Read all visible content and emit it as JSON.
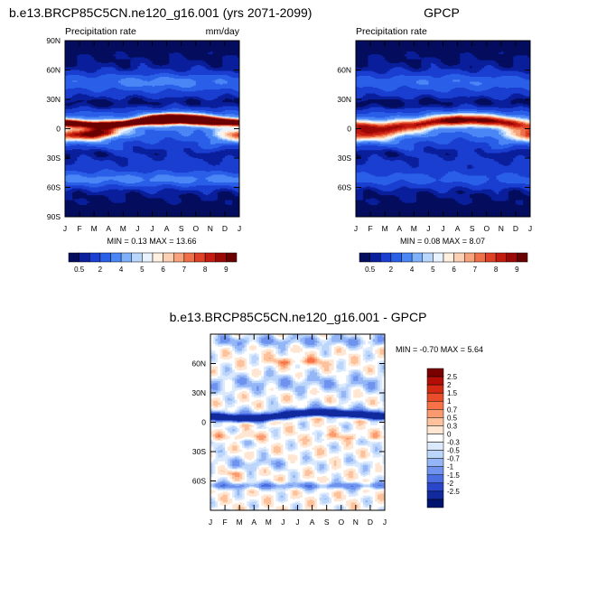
{
  "figure": {
    "panels": [
      {
        "id": "model",
        "title": "b.e13.BRCP85C5CN.ne120_g16.001 (yrs 2071-2099)",
        "left_label": "Precipitation rate",
        "right_label": "mm/day",
        "stats": "MIN =  0.13 MAX =  13.66",
        "y_ticks": [
          "90N",
          "60N",
          "30N",
          "0",
          "30S",
          "60S",
          "90S"
        ]
      },
      {
        "id": "obs",
        "title": "GPCP",
        "left_label": "Precipitation rate",
        "right_label": "",
        "stats": "MIN =  0.08 MAX =  8.07",
        "y_ticks": [
          "60N",
          "30N",
          "0",
          "30S",
          "60S"
        ]
      },
      {
        "id": "diff",
        "title": "b.e13.BRCP85C5CN.ne120_g16.001 - GPCP",
        "left_label": "",
        "right_label": "",
        "stats": "MIN = -0.70 MAX =  5.64",
        "y_ticks": [
          "60N",
          "30N",
          "0",
          "30S",
          "60S"
        ]
      }
    ],
    "months": [
      "J",
      "F",
      "M",
      "A",
      "M",
      "J",
      "J",
      "A",
      "S",
      "O",
      "N",
      "D",
      "J"
    ],
    "abs_colorbar": {
      "labels": [
        "0.5",
        "2",
        "4",
        "5",
        "6",
        "7",
        "8",
        "9"
      ],
      "colors": [
        "#040d5e",
        "#0a1f9c",
        "#1a3ed0",
        "#2a5fe8",
        "#4a86f5",
        "#7fb1fb",
        "#b9d6fd",
        "#e8f3ff",
        "#fff0e0",
        "#fcd0b4",
        "#f7a27a",
        "#ee6f48",
        "#de4126",
        "#c31b10",
        "#9c0806",
        "#6b0000"
      ]
    },
    "diff_colorbar": {
      "labels": [
        "2.5",
        "2",
        "1.5",
        "1",
        "0.7",
        "0.5",
        "0.3",
        "0",
        "-0.3",
        "-0.5",
        "-0.7",
        "-1",
        "-1.5",
        "-2",
        "-2.5"
      ],
      "colors": [
        "#7a0000",
        "#b30d06",
        "#d42a14",
        "#ea4d2a",
        "#f77347",
        "#fb9a6e",
        "#fdc29c",
        "#ffe6d2",
        "#ffffff",
        "#dbe9fd",
        "#bcd5fb",
        "#94b6f6",
        "#6f93ee",
        "#4a6de2",
        "#2a47cc",
        "#112a9e",
        "#00136e"
      ]
    }
  },
  "chart_data": [
    {
      "type": "heatmap",
      "title": "b.e13.BRCP85C5CN.ne120_g16.001 (yrs 2071-2099)",
      "subtitle_left": "Precipitation rate",
      "units": "mm/day",
      "x": [
        "J",
        "F",
        "M",
        "A",
        "M",
        "J",
        "J",
        "A",
        "S",
        "O",
        "N",
        "D",
        "J"
      ],
      "y_ticks": [
        "90N",
        "60N",
        "30N",
        "0",
        "30S",
        "60S",
        "90S"
      ],
      "ylim": [
        -90,
        90
      ],
      "levels": [
        0.5,
        1,
        2,
        3,
        4,
        4.5,
        5,
        5.5,
        6,
        6.5,
        7,
        7.5,
        8,
        8.5,
        9
      ],
      "min": 0.13,
      "max": 13.66,
      "itcz": {
        "lat": [
          6,
          5,
          4,
          4,
          5,
          7,
          9,
          10,
          10,
          9,
          8,
          7,
          6
        ],
        "peak": [
          9.5,
          8.5,
          8.5,
          8.0,
          9.0,
          10.5,
          12.5,
          13.5,
          13.0,
          12.0,
          11.0,
          10.0,
          9.5
        ],
        "width_deg": [
          4,
          4,
          4,
          4,
          4,
          4,
          5,
          5,
          5,
          5,
          5,
          4,
          4
        ]
      },
      "south_band": {
        "lat": [
          -6,
          -6,
          -5,
          -4,
          -4,
          -5,
          -6,
          -6,
          -6,
          -6,
          -6,
          -6,
          -6
        ],
        "peak": [
          6.0,
          7.0,
          8.5,
          7.5,
          3.5,
          2.5,
          2.2,
          2.2,
          2.2,
          2.2,
          3.0,
          5.0,
          6.0
        ]
      },
      "storm_tracks": {
        "north_peak": 4.0,
        "south_peak": 4.0
      }
    },
    {
      "type": "heatmap",
      "title": "GPCP",
      "subtitle_left": "Precipitation rate",
      "x": [
        "J",
        "F",
        "M",
        "A",
        "M",
        "J",
        "J",
        "A",
        "S",
        "O",
        "N",
        "D",
        "J"
      ],
      "y_ticks": [
        "60N",
        "30N",
        "0",
        "30S",
        "60S"
      ],
      "ylim": [
        -90,
        90
      ],
      "levels": [
        0.5,
        1,
        2,
        3,
        4,
        4.5,
        5,
        5.5,
        6,
        6.5,
        7,
        7.5,
        8,
        8.5,
        9
      ],
      "min": 0.08,
      "max": 8.07,
      "itcz": {
        "lat": [
          3,
          2,
          2,
          3,
          4,
          6,
          8,
          9,
          9,
          8,
          7,
          5,
          3
        ],
        "peak": [
          6.0,
          6.0,
          6.0,
          6.0,
          6.5,
          7.0,
          7.5,
          8.0,
          8.0,
          7.5,
          7.0,
          6.5,
          6.0
        ],
        "width_deg": [
          6,
          6,
          6,
          6,
          6,
          6,
          6,
          6,
          6,
          6,
          6,
          6,
          6
        ]
      },
      "south_band": {
        "lat": [
          -6,
          -6,
          -5,
          -4,
          -4,
          -5,
          -6,
          -6,
          -6,
          -6,
          -6,
          -6,
          -6
        ],
        "peak": [
          5.5,
          5.5,
          5.0,
          4.5,
          3.0,
          2.5,
          2.2,
          2.2,
          2.2,
          2.5,
          3.5,
          5.0,
          5.5
        ]
      },
      "storm_tracks": {
        "north_peak": 3.5,
        "south_peak": 3.0
      }
    },
    {
      "type": "heatmap",
      "title": "b.e13.BRCP85C5CN.ne120_g16.001 - GPCP",
      "x": [
        "J",
        "F",
        "M",
        "A",
        "M",
        "J",
        "J",
        "A",
        "S",
        "O",
        "N",
        "D",
        "J"
      ],
      "y_ticks": [
        "60N",
        "30N",
        "0",
        "30S",
        "60S"
      ],
      "ylim": [
        -90,
        90
      ],
      "levels": [
        -2.5,
        -2,
        -1.5,
        -1,
        -0.7,
        -0.5,
        -0.3,
        0,
        0.3,
        0.5,
        0.7,
        1,
        1.5,
        2,
        2.5
      ],
      "min": -0.7,
      "max": 5.64
    }
  ]
}
